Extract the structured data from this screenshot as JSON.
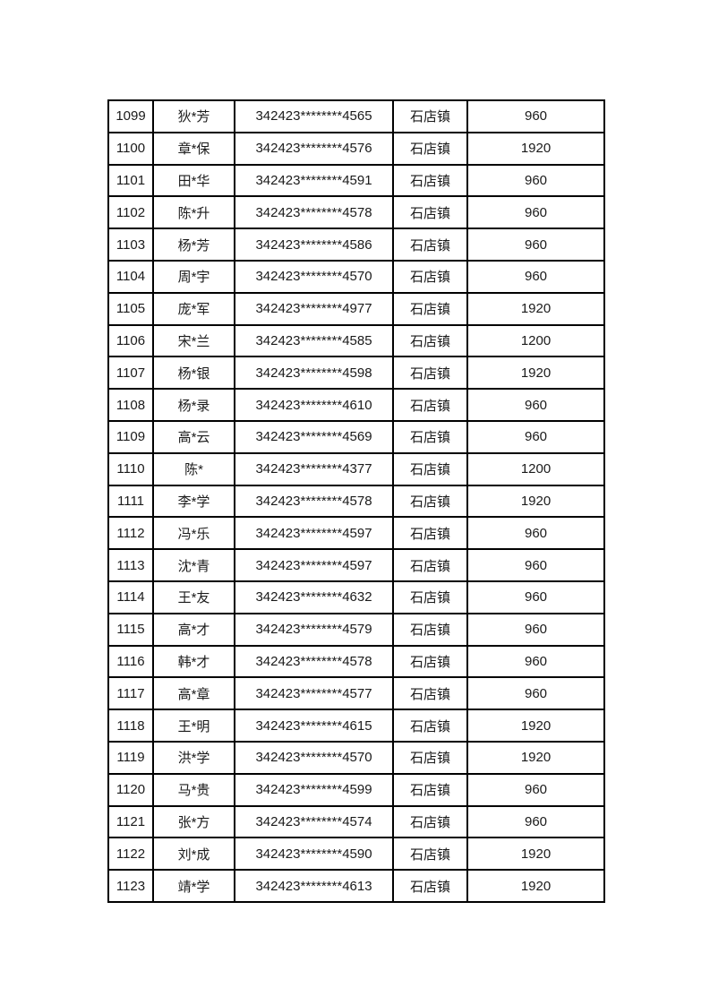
{
  "colors": {
    "background": "#ffffff",
    "border": "#000000",
    "text": "#1a1a1a"
  },
  "table": {
    "rows": [
      {
        "serial": "1099",
        "name": "狄*芳",
        "id_number": "342423********4565",
        "town": "石店镇",
        "amount": "960"
      },
      {
        "serial": "1100",
        "name": "章*保",
        "id_number": "342423********4576",
        "town": "石店镇",
        "amount": "1920"
      },
      {
        "serial": "1101",
        "name": "田*华",
        "id_number": "342423********4591",
        "town": "石店镇",
        "amount": "960"
      },
      {
        "serial": "1102",
        "name": "陈*升",
        "id_number": "342423********4578",
        "town": "石店镇",
        "amount": "960"
      },
      {
        "serial": "1103",
        "name": "杨*芳",
        "id_number": "342423********4586",
        "town": "石店镇",
        "amount": "960"
      },
      {
        "serial": "1104",
        "name": "周*宇",
        "id_number": "342423********4570",
        "town": "石店镇",
        "amount": "960"
      },
      {
        "serial": "1105",
        "name": "庞*军",
        "id_number": "342423********4977",
        "town": "石店镇",
        "amount": "1920"
      },
      {
        "serial": "1106",
        "name": "宋*兰",
        "id_number": "342423********4585",
        "town": "石店镇",
        "amount": "1200"
      },
      {
        "serial": "1107",
        "name": "杨*银",
        "id_number": "342423********4598",
        "town": "石店镇",
        "amount": "1920"
      },
      {
        "serial": "1108",
        "name": "杨*录",
        "id_number": "342423********4610",
        "town": "石店镇",
        "amount": "960"
      },
      {
        "serial": "1109",
        "name": "高*云",
        "id_number": "342423********4569",
        "town": "石店镇",
        "amount": "960"
      },
      {
        "serial": "1110",
        "name": "陈*",
        "id_number": "342423********4377",
        "town": "石店镇",
        "amount": "1200"
      },
      {
        "serial": "1111",
        "name": "李*学",
        "id_number": "342423********4578",
        "town": "石店镇",
        "amount": "1920"
      },
      {
        "serial": "1112",
        "name": "冯*乐",
        "id_number": "342423********4597",
        "town": "石店镇",
        "amount": "960"
      },
      {
        "serial": "1113",
        "name": "沈*青",
        "id_number": "342423********4597",
        "town": "石店镇",
        "amount": "960"
      },
      {
        "serial": "1114",
        "name": "王*友",
        "id_number": "342423********4632",
        "town": "石店镇",
        "amount": "960"
      },
      {
        "serial": "1115",
        "name": "高*才",
        "id_number": "342423********4579",
        "town": "石店镇",
        "amount": "960"
      },
      {
        "serial": "1116",
        "name": "韩*才",
        "id_number": "342423********4578",
        "town": "石店镇",
        "amount": "960"
      },
      {
        "serial": "1117",
        "name": "高*章",
        "id_number": "342423********4577",
        "town": "石店镇",
        "amount": "960"
      },
      {
        "serial": "1118",
        "name": "王*明",
        "id_number": "342423********4615",
        "town": "石店镇",
        "amount": "1920"
      },
      {
        "serial": "1119",
        "name": "洪*学",
        "id_number": "342423********4570",
        "town": "石店镇",
        "amount": "1920"
      },
      {
        "serial": "1120",
        "name": "马*贵",
        "id_number": "342423********4599",
        "town": "石店镇",
        "amount": "960"
      },
      {
        "serial": "1121",
        "name": "张*方",
        "id_number": "342423********4574",
        "town": "石店镇",
        "amount": "960"
      },
      {
        "serial": "1122",
        "name": "刘*成",
        "id_number": "342423********4590",
        "town": "石店镇",
        "amount": "1920"
      },
      {
        "serial": "1123",
        "name": "靖*学",
        "id_number": "342423********4613",
        "town": "石店镇",
        "amount": "1920"
      }
    ]
  }
}
